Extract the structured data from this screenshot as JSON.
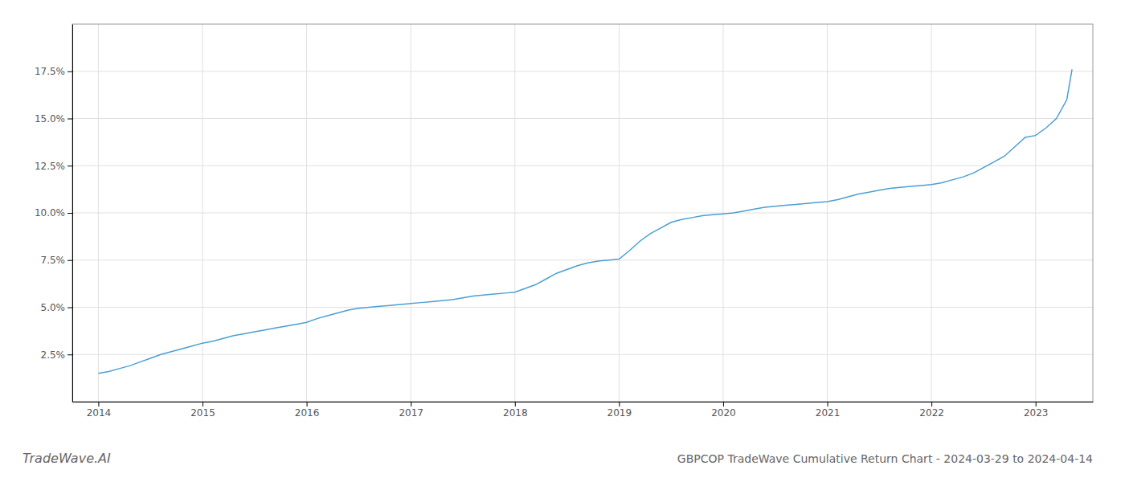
{
  "chart_data": {
    "type": "line",
    "title": "GBPCOP TradeWave Cumulative Return Chart - 2024-03-29 to 2024-04-14",
    "annotations": [
      "TradeWave.AI"
    ],
    "color": "#4a9fd4",
    "x": [
      2014.0,
      2014.1,
      2014.2,
      2014.3,
      2014.4,
      2014.5,
      2014.6,
      2014.7,
      2014.8,
      2014.9,
      2015.0,
      2015.1,
      2015.2,
      2015.3,
      2015.4,
      2015.5,
      2015.6,
      2015.7,
      2015.8,
      2015.9,
      2016.0,
      2016.1,
      2016.2,
      2016.3,
      2016.4,
      2016.5,
      2016.6,
      2016.7,
      2016.8,
      2016.9,
      2017.0,
      2017.1,
      2017.2,
      2017.3,
      2017.4,
      2017.5,
      2017.6,
      2017.7,
      2017.8,
      2017.9,
      2018.0,
      2018.1,
      2018.2,
      2018.3,
      2018.4,
      2018.5,
      2018.6,
      2018.7,
      2018.8,
      2018.9,
      2019.0,
      2019.1,
      2019.2,
      2019.3,
      2019.4,
      2019.5,
      2019.6,
      2019.7,
      2019.8,
      2019.9,
      2020.0,
      2020.1,
      2020.2,
      2020.3,
      2020.4,
      2020.5,
      2020.6,
      2020.7,
      2020.8,
      2020.9,
      2021.0,
      2021.1,
      2021.2,
      2021.3,
      2021.4,
      2021.5,
      2021.6,
      2021.7,
      2021.8,
      2021.9,
      2022.0,
      2022.1,
      2022.2,
      2022.3,
      2022.4,
      2022.5,
      2022.6,
      2022.7,
      2022.8,
      2022.9,
      2023.0,
      2023.1,
      2023.2,
      2023.3,
      2023.35
    ],
    "values": [
      1.5,
      1.6,
      1.75,
      1.9,
      2.1,
      2.3,
      2.5,
      2.65,
      2.8,
      2.95,
      3.1,
      3.2,
      3.35,
      3.5,
      3.6,
      3.7,
      3.8,
      3.9,
      4.0,
      4.1,
      4.2,
      4.4,
      4.55,
      4.7,
      4.85,
      4.95,
      5.0,
      5.05,
      5.1,
      5.15,
      5.2,
      5.25,
      5.3,
      5.35,
      5.4,
      5.5,
      5.6,
      5.65,
      5.7,
      5.75,
      5.8,
      6.0,
      6.2,
      6.5,
      6.8,
      7.0,
      7.2,
      7.35,
      7.45,
      7.5,
      7.55,
      8.0,
      8.5,
      8.9,
      9.2,
      9.5,
      9.65,
      9.75,
      9.85,
      9.9,
      9.95,
      10.0,
      10.1,
      10.2,
      10.3,
      10.35,
      10.4,
      10.45,
      10.5,
      10.55,
      10.6,
      10.7,
      10.85,
      11.0,
      11.1,
      11.2,
      11.3,
      11.35,
      11.4,
      11.45,
      11.5,
      11.6,
      11.75,
      11.9,
      12.1,
      12.4,
      12.7,
      13.0,
      13.5,
      14.0,
      14.1,
      14.5,
      15.0,
      16.0,
      17.6
    ],
    "xlim": [
      2013.75,
      2023.55
    ],
    "xticks": [
      2014,
      2015,
      2016,
      2017,
      2018,
      2019,
      2020,
      2021,
      2022,
      2023
    ],
    "ylim": [
      0.0,
      20.0
    ],
    "yticks": [
      {
        "value": 2.5,
        "label": "2.5%"
      },
      {
        "value": 5.0,
        "label": "5.0%"
      },
      {
        "value": 7.5,
        "label": "7.5%"
      },
      {
        "value": 10.0,
        "label": "10.0%"
      },
      {
        "value": 12.5,
        "label": "12.5%"
      },
      {
        "value": 15.0,
        "label": "15.0%"
      },
      {
        "value": 17.5,
        "label": "17.5%"
      }
    ],
    "grid": true
  }
}
